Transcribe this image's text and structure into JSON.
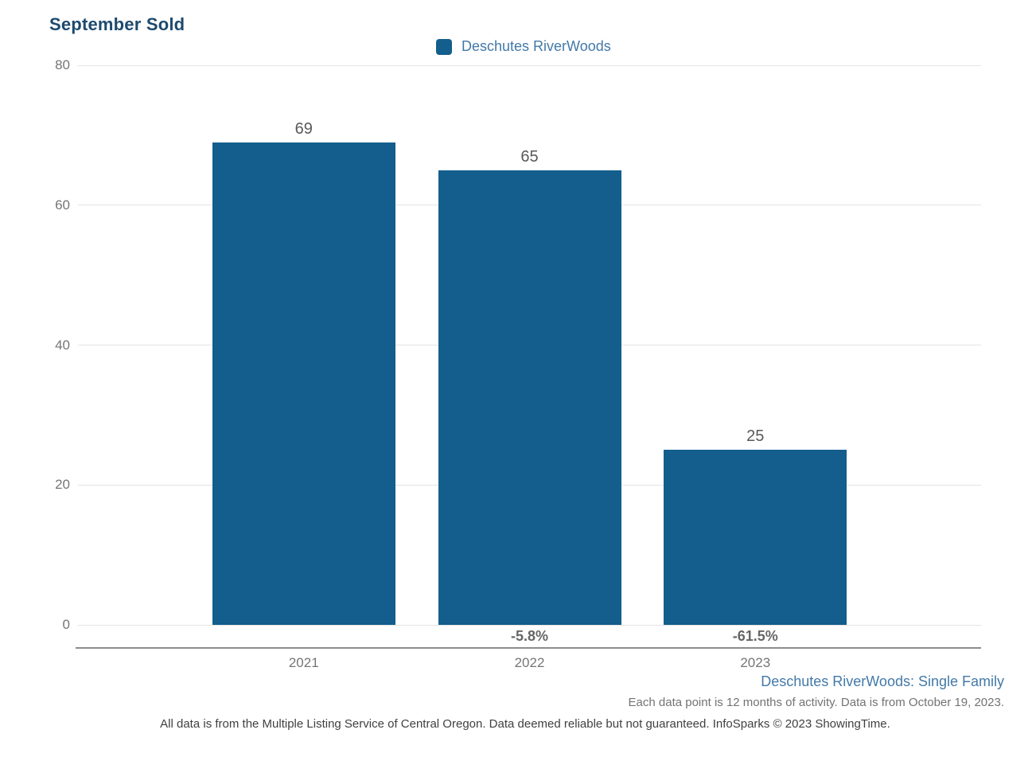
{
  "page": {
    "title": "September Sold"
  },
  "legend": {
    "label": "Deschutes RiverWoods"
  },
  "chart_data": {
    "type": "bar",
    "title": "September Sold",
    "series_name": "Deschutes RiverWoods",
    "categories": [
      "2021",
      "2022",
      "2023"
    ],
    "values": [
      69,
      65,
      25
    ],
    "value_labels": [
      "69",
      "65",
      "25"
    ],
    "pct_change_labels": [
      "",
      "-5.8%",
      "-61.5%"
    ],
    "xlabel": "",
    "ylabel": "",
    "ylim": [
      0,
      80
    ],
    "yticks": [
      0,
      20,
      40,
      60,
      80
    ],
    "grid": "horizontal",
    "legend_position": "top-center"
  },
  "footnotes": {
    "series_scope": "Deschutes RiverWoods: Single Family",
    "data_note": "Each data point is 12 months of activity. Data is from October 19, 2023.",
    "disclaimer": "All data is from the Multiple Listing Service of Central Oregon. Data deemed reliable but not guaranteed. InfoSparks © 2023 ShowingTime."
  },
  "colors": {
    "bar": "#135e8c",
    "title": "#1d4a6e",
    "link_blue": "#4379a8"
  }
}
